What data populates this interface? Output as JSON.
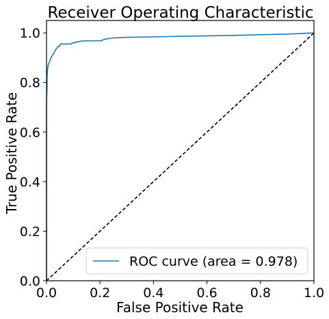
{
  "colors": {
    "roc_line": "#1f77b4",
    "reference_line": "#000000",
    "frame": "#000000",
    "legend_border": "#cccccc",
    "background": "#ffffff"
  },
  "chart_data": {
    "type": "line",
    "title": "Receiver Operating Characteristic",
    "xlabel": "False Positive Rate",
    "ylabel": "True Positive Rate",
    "xlim": [
      0.0,
      1.0
    ],
    "ylim": [
      0.0,
      1.05
    ],
    "xticks": [
      "0.0",
      "0.2",
      "0.4",
      "0.6",
      "0.8",
      "1.0"
    ],
    "yticks": [
      "0.0",
      "0.2",
      "0.4",
      "0.6",
      "0.8",
      "1.0"
    ],
    "grid": false,
    "legend_position": "lower-right",
    "series": [
      {
        "name": "ROC curve (area = 0.978)",
        "style": "solid",
        "color": "#1f77b4",
        "x": [
          0.0,
          0.0,
          0.002,
          0.002,
          0.003,
          0.004,
          0.005,
          0.006,
          0.008,
          0.01,
          0.012,
          0.013,
          0.015,
          0.017,
          0.02,
          0.023,
          0.025,
          0.028,
          0.03,
          0.033,
          0.036,
          0.04,
          0.042,
          0.045,
          0.048,
          0.05,
          0.052,
          0.055,
          0.06,
          0.07,
          0.09,
          0.1,
          0.12,
          0.14,
          0.16,
          0.19,
          0.205,
          0.21,
          0.22,
          0.24,
          0.25,
          0.26,
          0.3,
          0.5,
          0.7,
          0.9,
          1.0
        ],
        "y": [
          0.0,
          0.72,
          0.78,
          0.82,
          0.84,
          0.855,
          0.86,
          0.87,
          0.875,
          0.88,
          0.885,
          0.89,
          0.895,
          0.9,
          0.905,
          0.91,
          0.915,
          0.92,
          0.925,
          0.93,
          0.935,
          0.94,
          0.945,
          0.945,
          0.945,
          0.95,
          0.955,
          0.955,
          0.955,
          0.955,
          0.955,
          0.96,
          0.965,
          0.968,
          0.968,
          0.968,
          0.968,
          0.972,
          0.975,
          0.978,
          0.98,
          0.98,
          0.982,
          0.986,
          0.99,
          0.995,
          1.0
        ]
      },
      {
        "name": "",
        "style": "dashed",
        "color": "#000000",
        "x": [
          0.0,
          1.0
        ],
        "y": [
          0.0,
          1.0
        ]
      }
    ]
  }
}
